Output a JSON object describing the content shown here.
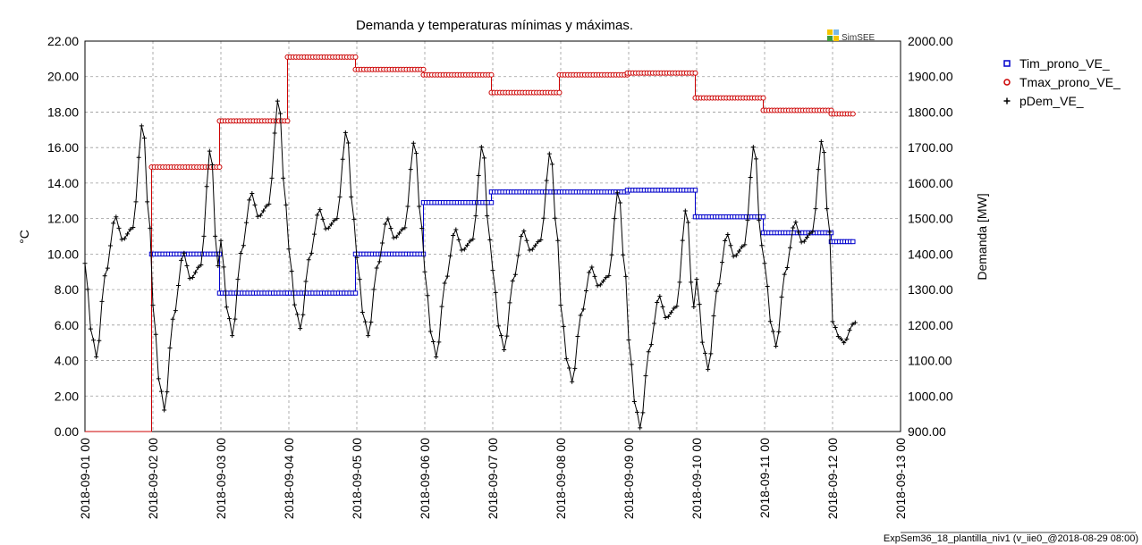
{
  "chart_data": {
    "type": "line",
    "title": "Demanda y temperaturas mínimas y máximas.",
    "ylabel": "°C",
    "y2label": "Demanda [MW]",
    "ylim": [
      0,
      22
    ],
    "y2lim": [
      900,
      2000
    ],
    "xlim": [
      "2018-09-01 00",
      "2018-09-13 00"
    ],
    "yticks": [
      "0.00",
      "2.00",
      "4.00",
      "6.00",
      "8.00",
      "10.00",
      "12.00",
      "14.00",
      "16.00",
      "18.00",
      "20.00",
      "22.00"
    ],
    "y2ticks": [
      "900.00",
      "1000.00",
      "1100.00",
      "1200.00",
      "1300.00",
      "1400.00",
      "1500.00",
      "1600.00",
      "1700.00",
      "1800.00",
      "1900.00",
      "2000.00"
    ],
    "xticks": [
      "2018-09-01 00",
      "2018-09-02 00",
      "2018-09-03 00",
      "2018-09-04 00",
      "2018-09-05 00",
      "2018-09-06 00",
      "2018-09-07 00",
      "2018-09-08 00",
      "2018-09-09 00",
      "2018-09-10 00",
      "2018-09-11 00",
      "2018-09-12 00",
      "2018-09-13 00"
    ],
    "grid": true,
    "legend_position": "right",
    "series": [
      {
        "name": "Tim_prono_VE_",
        "axis": "left",
        "color": "#0000cc",
        "marker": "square",
        "step_values": [
          {
            "from": 0.0,
            "to": 0.98,
            "value": 0.0
          },
          {
            "from": 0.98,
            "to": 1.98,
            "value": 10.0
          },
          {
            "from": 1.98,
            "to": 2.98,
            "value": 7.8
          },
          {
            "from": 2.98,
            "to": 3.98,
            "value": 7.8
          },
          {
            "from": 3.98,
            "to": 4.98,
            "value": 10.0
          },
          {
            "from": 4.98,
            "to": 5.98,
            "value": 12.9
          },
          {
            "from": 5.98,
            "to": 6.98,
            "value": 13.5
          },
          {
            "from": 6.98,
            "to": 7.98,
            "value": 13.5
          },
          {
            "from": 7.98,
            "to": 8.98,
            "value": 13.6
          },
          {
            "from": 8.98,
            "to": 9.98,
            "value": 12.1
          },
          {
            "from": 9.98,
            "to": 10.98,
            "value": 11.2
          },
          {
            "from": 10.98,
            "to": 11.3,
            "value": 10.7
          }
        ]
      },
      {
        "name": "Tmax_prono_VE_",
        "axis": "left",
        "color": "#cc0000",
        "marker": "circle",
        "step_values": [
          {
            "from": 0.0,
            "to": 0.98,
            "value": 0.0
          },
          {
            "from": 0.98,
            "to": 1.98,
            "value": 14.9
          },
          {
            "from": 1.98,
            "to": 2.98,
            "value": 17.5
          },
          {
            "from": 2.98,
            "to": 3.98,
            "value": 21.1
          },
          {
            "from": 3.98,
            "to": 4.98,
            "value": 20.4
          },
          {
            "from": 4.98,
            "to": 5.98,
            "value": 20.1
          },
          {
            "from": 5.98,
            "to": 6.98,
            "value": 19.1
          },
          {
            "from": 6.98,
            "to": 7.98,
            "value": 20.1
          },
          {
            "from": 7.98,
            "to": 8.98,
            "value": 20.2
          },
          {
            "from": 8.98,
            "to": 9.98,
            "value": 18.8
          },
          {
            "from": 9.98,
            "to": 10.98,
            "value": 18.1
          },
          {
            "from": 10.98,
            "to": 11.3,
            "value": 17.9
          }
        ]
      },
      {
        "name": "pDem_VE_",
        "axis": "right",
        "color": "#000000",
        "marker": "plus",
        "daily_profiles": [
          {
            "day": 0,
            "min": 1110,
            "evening_peak": 1770
          },
          {
            "day": 1,
            "min": 960,
            "evening_peak": 1700
          },
          {
            "day": 2,
            "min": 1170,
            "evening_peak": 1840
          },
          {
            "day": 3,
            "min": 1190,
            "evening_peak": 1750
          },
          {
            "day": 4,
            "min": 1170,
            "evening_peak": 1720
          },
          {
            "day": 5,
            "min": 1110,
            "evening_peak": 1710
          },
          {
            "day": 6,
            "min": 1130,
            "evening_peak": 1690
          },
          {
            "day": 7,
            "min": 1040,
            "evening_peak": 1580
          },
          {
            "day": 8,
            "min": 910,
            "evening_peak": 1530
          },
          {
            "day": 9,
            "min": 1075,
            "evening_peak": 1710
          },
          {
            "day": 10,
            "min": 1140,
            "evening_peak": 1725
          },
          {
            "day": 11,
            "min": 1150,
            "evening_peak": 1300
          }
        ]
      }
    ]
  },
  "logo": {
    "text": "SimSEE"
  },
  "footer": {
    "text": "ExpSem36_18_plantilla_niv1 (v_iie0_@2018-08-29 08:00)"
  }
}
